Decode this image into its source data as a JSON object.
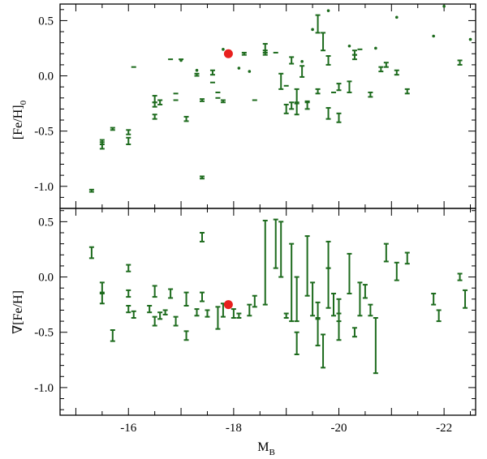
{
  "colors": {
    "data": "#1d6b1d",
    "highlight": "#e8201e",
    "axis": "#000000"
  },
  "chart_data": [
    {
      "type": "scatter",
      "panel": "top",
      "ylabel_text": "[Fe/H]",
      "ylabel_sub": "0",
      "xlim": [
        -14.7,
        -22.6
      ],
      "ylim": [
        -1.2,
        0.65
      ],
      "yticks": [
        -1.0,
        -0.5,
        0.0,
        0.5
      ],
      "ytick_labels": [
        "-1.0",
        "-0.5",
        "0.0",
        "0.5"
      ],
      "series": [
        {
          "kind": "errorbar",
          "points": [
            [
              -15.3,
              -1.04,
              0.01
            ],
            [
              -15.5,
              -0.63,
              0.03
            ],
            [
              -15.5,
              -0.6,
              0.02
            ],
            [
              -15.7,
              -0.48,
              0.01
            ],
            [
              -16.0,
              -0.59,
              0.03
            ],
            [
              -16.0,
              -0.51,
              0.02
            ],
            [
              -16.1,
              0.08,
              0.0
            ],
            [
              -16.5,
              -0.37,
              0.02
            ],
            [
              -16.5,
              -0.26,
              0.02
            ],
            [
              -16.5,
              -0.21,
              0.03
            ],
            [
              -16.6,
              -0.24,
              0.02
            ],
            [
              -16.8,
              0.15,
              0.0
            ],
            [
              -16.9,
              -0.22,
              0.0
            ],
            [
              -16.9,
              -0.16,
              0.0
            ],
            [
              -17.0,
              0.15,
              0.0
            ],
            [
              -17.1,
              -0.39,
              0.02
            ],
            [
              -17.3,
              0.01,
              0.01
            ],
            [
              -17.4,
              -0.92,
              0.01
            ],
            [
              -17.4,
              -0.22,
              0.01
            ],
            [
              -17.6,
              0.03,
              0.02
            ],
            [
              -17.6,
              -0.06,
              0.0
            ],
            [
              -17.7,
              -0.15,
              0.0
            ],
            [
              -17.7,
              -0.2,
              0.0
            ],
            [
              -17.8,
              -0.23,
              0.01
            ],
            [
              -18.2,
              0.2,
              0.01
            ],
            [
              -18.4,
              -0.22,
              0.0
            ],
            [
              -18.6,
              0.25,
              0.04
            ],
            [
              -18.6,
              0.21,
              0.02
            ],
            [
              -18.8,
              0.21,
              0.0
            ],
            [
              -18.9,
              -0.05,
              0.07
            ],
            [
              -19.0,
              -0.09,
              0.0
            ],
            [
              -19.0,
              -0.3,
              0.04
            ],
            [
              -19.1,
              0.14,
              0.03
            ],
            [
              -19.1,
              -0.27,
              0.03
            ],
            [
              -19.2,
              -0.18,
              0.06
            ],
            [
              -19.2,
              -0.3,
              0.05
            ],
            [
              -19.3,
              0.04,
              0.05
            ],
            [
              -19.4,
              -0.27,
              0.03
            ],
            [
              -19.4,
              -0.23,
              0.0
            ],
            [
              -19.6,
              0.47,
              0.08
            ],
            [
              -19.6,
              -0.14,
              0.02
            ],
            [
              -19.7,
              0.31,
              0.08
            ],
            [
              -19.8,
              0.14,
              0.04
            ],
            [
              -19.8,
              -0.34,
              0.05
            ],
            [
              -19.9,
              -0.15,
              0.0
            ],
            [
              -20.0,
              -0.1,
              0.03
            ],
            [
              -20.0,
              -0.38,
              0.04
            ],
            [
              -20.2,
              -0.1,
              0.05
            ],
            [
              -20.3,
              0.17,
              0.02
            ],
            [
              -20.3,
              0.21,
              0.02
            ],
            [
              -20.4,
              0.24,
              0.0
            ],
            [
              -20.6,
              -0.17,
              0.02
            ],
            [
              -20.8,
              0.06,
              0.02
            ],
            [
              -20.9,
              0.1,
              0.02
            ],
            [
              -21.1,
              0.03,
              0.02
            ],
            [
              -21.3,
              -0.14,
              0.02
            ],
            [
              -22.3,
              0.12,
              0.02
            ]
          ]
        },
        {
          "kind": "dot",
          "points": [
            [
              -17.0,
              0.14
            ],
            [
              -17.3,
              0.05
            ],
            [
              -17.8,
              0.24
            ],
            [
              -18.1,
              0.07
            ],
            [
              -18.3,
              0.04
            ],
            [
              -19.3,
              0.13
            ],
            [
              -19.5,
              0.42
            ],
            [
              -19.8,
              0.59
            ],
            [
              -20.2,
              0.27
            ],
            [
              -20.7,
              0.25
            ],
            [
              -21.1,
              0.53
            ],
            [
              -21.8,
              0.36
            ],
            [
              -22.0,
              0.63
            ],
            [
              -22.5,
              0.33
            ]
          ]
        },
        {
          "kind": "highlight",
          "points": [
            [
              -17.9,
              0.2
            ]
          ]
        }
      ]
    },
    {
      "type": "scatter",
      "panel": "bottom",
      "ylabel_text": "∇[Fe/H]",
      "xlabel_text": "M",
      "xlabel_sub": "B",
      "xlim": [
        -14.7,
        -22.6
      ],
      "ylim": [
        -1.25,
        0.62
      ],
      "yticks": [
        -1.0,
        -0.5,
        0.0,
        0.5
      ],
      "ytick_labels": [
        "-1.0",
        "-0.5",
        "0.0",
        "0.5"
      ],
      "xticks": [
        -16,
        -18,
        -20,
        -22
      ],
      "xtick_labels": [
        "-16",
        "-18",
        "-20",
        "-22"
      ],
      "series": [
        {
          "kind": "errorbar",
          "points": [
            [
              -15.3,
              0.22,
              0.05
            ],
            [
              -15.5,
              -0.1,
              0.05
            ],
            [
              -15.5,
              -0.19,
              0.05
            ],
            [
              -15.7,
              -0.53,
              0.05
            ],
            [
              -16.0,
              0.08,
              0.03
            ],
            [
              -16.0,
              -0.15,
              0.03
            ],
            [
              -16.0,
              -0.29,
              0.03
            ],
            [
              -16.1,
              -0.34,
              0.03
            ],
            [
              -16.4,
              -0.29,
              0.03
            ],
            [
              -16.5,
              -0.4,
              0.04
            ],
            [
              -16.5,
              -0.13,
              0.05
            ],
            [
              -16.6,
              -0.35,
              0.03
            ],
            [
              -16.7,
              -0.32,
              0.02
            ],
            [
              -16.8,
              -0.15,
              0.04
            ],
            [
              -16.9,
              -0.4,
              0.04
            ],
            [
              -17.1,
              -0.53,
              0.04
            ],
            [
              -17.1,
              -0.2,
              0.06
            ],
            [
              -17.3,
              -0.32,
              0.03
            ],
            [
              -17.4,
              -0.18,
              0.04
            ],
            [
              -17.4,
              0.36,
              0.04
            ],
            [
              -17.5,
              -0.33,
              0.03
            ],
            [
              -17.7,
              -0.37,
              0.1
            ],
            [
              -17.8,
              -0.3,
              0.06
            ],
            [
              -18.0,
              -0.33,
              0.04
            ],
            [
              -18.1,
              -0.35,
              0.02
            ],
            [
              -18.3,
              -0.3,
              0.05
            ],
            [
              -18.4,
              -0.22,
              0.05
            ],
            [
              -18.6,
              0.13,
              0.38
            ],
            [
              -18.8,
              0.3,
              0.22
            ],
            [
              -18.9,
              0.25,
              0.25
            ],
            [
              -19.0,
              -0.35,
              0.02
            ],
            [
              -19.1,
              -0.05,
              0.35
            ],
            [
              -19.2,
              -0.6,
              0.1
            ],
            [
              -19.2,
              -0.2,
              0.2
            ],
            [
              -19.4,
              0.1,
              0.27
            ],
            [
              -19.5,
              -0.2,
              0.15
            ],
            [
              -19.6,
              -0.5,
              0.12
            ],
            [
              -19.6,
              -0.3,
              0.07
            ],
            [
              -19.7,
              -0.67,
              0.15
            ],
            [
              -19.8,
              0.2,
              0.12
            ],
            [
              -19.8,
              -0.1,
              0.18
            ],
            [
              -19.9,
              -0.25,
              0.1
            ],
            [
              -20.0,
              -0.45,
              0.12
            ],
            [
              -20.0,
              -0.3,
              0.1
            ],
            [
              -20.2,
              0.03,
              0.18
            ],
            [
              -20.3,
              -0.5,
              0.04
            ],
            [
              -20.4,
              -0.2,
              0.15
            ],
            [
              -20.5,
              -0.13,
              0.06
            ],
            [
              -20.6,
              -0.3,
              0.05
            ],
            [
              -20.7,
              -0.62,
              0.25
            ],
            [
              -20.9,
              0.22,
              0.08
            ],
            [
              -21.1,
              0.05,
              0.08
            ],
            [
              -21.3,
              0.17,
              0.05
            ],
            [
              -21.8,
              -0.2,
              0.05
            ],
            [
              -21.9,
              -0.35,
              0.05
            ],
            [
              -22.3,
              0.0,
              0.03
            ],
            [
              -22.4,
              -0.2,
              0.08
            ]
          ]
        },
        {
          "kind": "highlight",
          "points": [
            [
              -17.9,
              -0.25
            ]
          ]
        }
      ]
    }
  ]
}
